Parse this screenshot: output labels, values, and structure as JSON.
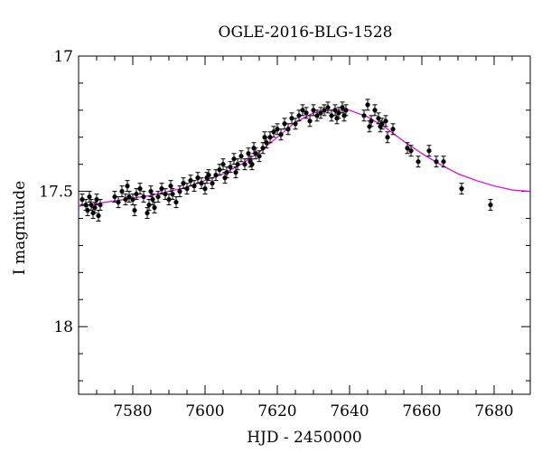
{
  "chart_data": {
    "type": "scatter",
    "title": "OGLE-2016-BLG-1528",
    "xlabel": "HJD - 2450000",
    "ylabel": "I magnitude",
    "xlim": [
      7565,
      7690
    ],
    "ylim": [
      17.0,
      18.25
    ],
    "y_inverted": true,
    "x_ticks": [
      7580,
      7600,
      7620,
      7640,
      7660,
      7680
    ],
    "x_tick_labels": [
      "7580",
      "7600",
      "7620",
      "7640",
      "7660",
      "7680"
    ],
    "y_ticks": [
      17.0,
      17.5,
      18.0
    ],
    "y_tick_labels": [
      "17",
      "17.5",
      "18"
    ],
    "grid": false,
    "colors": {
      "data": "#000000",
      "model": "#e000e0"
    },
    "series": [
      {
        "kind": "points-with-errorbars",
        "points": [
          [
            7566.0,
            17.53,
            0.02
          ],
          [
            7567.0,
            17.55,
            0.02
          ],
          [
            7567.5,
            17.57,
            0.02
          ],
          [
            7568.0,
            17.52,
            0.02
          ],
          [
            7568.5,
            17.55,
            0.02
          ],
          [
            7569.0,
            17.58,
            0.02
          ],
          [
            7569.5,
            17.56,
            0.02
          ],
          [
            7570.0,
            17.53,
            0.02
          ],
          [
            7570.5,
            17.59,
            0.02
          ],
          [
            7571.0,
            17.55,
            0.02
          ],
          [
            7575.0,
            17.52,
            0.02
          ],
          [
            7576.0,
            17.54,
            0.02
          ],
          [
            7577.0,
            17.5,
            0.02
          ],
          [
            7578.0,
            17.53,
            0.02
          ],
          [
            7578.5,
            17.48,
            0.02
          ],
          [
            7579.0,
            17.52,
            0.02
          ],
          [
            7580.0,
            17.53,
            0.02
          ],
          [
            7580.5,
            17.57,
            0.02
          ],
          [
            7581.0,
            17.51,
            0.02
          ],
          [
            7582.0,
            17.49,
            0.02
          ],
          [
            7583.0,
            17.52,
            0.02
          ],
          [
            7584.0,
            17.58,
            0.02
          ],
          [
            7584.5,
            17.55,
            0.02
          ],
          [
            7585.0,
            17.5,
            0.02
          ],
          [
            7585.5,
            17.53,
            0.02
          ],
          [
            7586.0,
            17.56,
            0.02
          ],
          [
            7587.0,
            17.52,
            0.02
          ],
          [
            7588.0,
            17.49,
            0.02
          ],
          [
            7589.0,
            17.51,
            0.02
          ],
          [
            7590.0,
            17.53,
            0.02
          ],
          [
            7590.5,
            17.48,
            0.02
          ],
          [
            7591.0,
            17.51,
            0.02
          ],
          [
            7592.0,
            17.54,
            0.02
          ],
          [
            7593.0,
            17.5,
            0.02
          ],
          [
            7594.0,
            17.47,
            0.02
          ],
          [
            7595.0,
            17.49,
            0.02
          ],
          [
            7596.0,
            17.46,
            0.02
          ],
          [
            7597.0,
            17.48,
            0.02
          ],
          [
            7598.0,
            17.45,
            0.02
          ],
          [
            7599.0,
            17.47,
            0.02
          ],
          [
            7600.0,
            17.49,
            0.02
          ],
          [
            7600.5,
            17.45,
            0.02
          ],
          [
            7601.0,
            17.44,
            0.02
          ],
          [
            7602.0,
            17.47,
            0.02
          ],
          [
            7603.0,
            17.44,
            0.02
          ],
          [
            7604.0,
            17.42,
            0.02
          ],
          [
            7605.0,
            17.4,
            0.02
          ],
          [
            7605.5,
            17.45,
            0.02
          ],
          [
            7606.0,
            17.43,
            0.02
          ],
          [
            7607.0,
            17.41,
            0.02
          ],
          [
            7608.0,
            17.38,
            0.02
          ],
          [
            7608.5,
            17.43,
            0.02
          ],
          [
            7609.0,
            17.4,
            0.02
          ],
          [
            7610.0,
            17.37,
            0.02
          ],
          [
            7611.0,
            17.4,
            0.02
          ],
          [
            7612.0,
            17.36,
            0.02
          ],
          [
            7612.5,
            17.39,
            0.02
          ],
          [
            7613.0,
            17.4,
            0.02
          ],
          [
            7613.5,
            17.34,
            0.02
          ],
          [
            7614.0,
            17.36,
            0.02
          ],
          [
            7615.0,
            17.37,
            0.02
          ],
          [
            7616.0,
            17.34,
            0.02
          ],
          [
            7616.5,
            17.3,
            0.02
          ],
          [
            7617.0,
            17.32,
            0.02
          ],
          [
            7618.0,
            17.3,
            0.02
          ],
          [
            7619.0,
            17.28,
            0.02
          ],
          [
            7620.0,
            17.27,
            0.02
          ],
          [
            7621.0,
            17.29,
            0.02
          ],
          [
            7622.0,
            17.25,
            0.02
          ],
          [
            7623.0,
            17.27,
            0.02
          ],
          [
            7624.0,
            17.23,
            0.02
          ],
          [
            7625.0,
            17.25,
            0.02
          ],
          [
            7626.0,
            17.22,
            0.02
          ],
          [
            7627.0,
            17.2,
            0.02
          ],
          [
            7628.0,
            17.21,
            0.02
          ],
          [
            7629.0,
            17.24,
            0.02
          ],
          [
            7630.0,
            17.2,
            0.02
          ],
          [
            7631.0,
            17.22,
            0.02
          ],
          [
            7632.0,
            17.21,
            0.02
          ],
          [
            7633.0,
            17.2,
            0.02
          ],
          [
            7634.0,
            17.19,
            0.02
          ],
          [
            7635.0,
            17.22,
            0.02
          ],
          [
            7636.0,
            17.2,
            0.02
          ],
          [
            7636.5,
            17.23,
            0.02
          ],
          [
            7637.0,
            17.21,
            0.02
          ],
          [
            7638.0,
            17.19,
            0.02
          ],
          [
            7638.5,
            17.22,
            0.02
          ],
          [
            7639.0,
            17.2,
            0.02
          ],
          [
            7644.0,
            17.22,
            0.02
          ],
          [
            7645.0,
            17.18,
            0.02
          ],
          [
            7645.5,
            17.26,
            0.02
          ],
          [
            7646.0,
            17.24,
            0.02
          ],
          [
            7647.0,
            17.2,
            0.02
          ],
          [
            7648.0,
            17.23,
            0.02
          ],
          [
            7648.5,
            17.26,
            0.02
          ],
          [
            7649.0,
            17.25,
            0.02
          ],
          [
            7650.0,
            17.24,
            0.02
          ],
          [
            7650.5,
            17.3,
            0.02
          ],
          [
            7652.0,
            17.27,
            0.02
          ],
          [
            7656.0,
            17.34,
            0.02
          ],
          [
            7657.0,
            17.35,
            0.02
          ],
          [
            7659.0,
            17.39,
            0.02
          ],
          [
            7662.0,
            17.35,
            0.02
          ],
          [
            7664.0,
            17.39,
            0.02
          ],
          [
            7666.0,
            17.39,
            0.02
          ],
          [
            7671.0,
            17.49,
            0.02
          ],
          [
            7679.0,
            17.55,
            0.02
          ]
        ]
      },
      {
        "kind": "model-curve",
        "points": [
          [
            7565,
            17.555
          ],
          [
            7570,
            17.545
          ],
          [
            7575,
            17.535
          ],
          [
            7580,
            17.525
          ],
          [
            7585,
            17.515
          ],
          [
            7590,
            17.5
          ],
          [
            7595,
            17.485
          ],
          [
            7600,
            17.46
          ],
          [
            7605,
            17.435
          ],
          [
            7610,
            17.4
          ],
          [
            7615,
            17.355
          ],
          [
            7620,
            17.3
          ],
          [
            7625,
            17.245
          ],
          [
            7630,
            17.21
          ],
          [
            7635,
            17.2
          ],
          [
            7640,
            17.2
          ],
          [
            7643,
            17.215
          ],
          [
            7645,
            17.225
          ],
          [
            7650,
            17.265
          ],
          [
            7655,
            17.315
          ],
          [
            7660,
            17.36
          ],
          [
            7665,
            17.4
          ],
          [
            7670,
            17.435
          ],
          [
            7675,
            17.46
          ],
          [
            7680,
            17.48
          ],
          [
            7685,
            17.495
          ],
          [
            7690,
            17.5
          ]
        ]
      }
    ]
  }
}
